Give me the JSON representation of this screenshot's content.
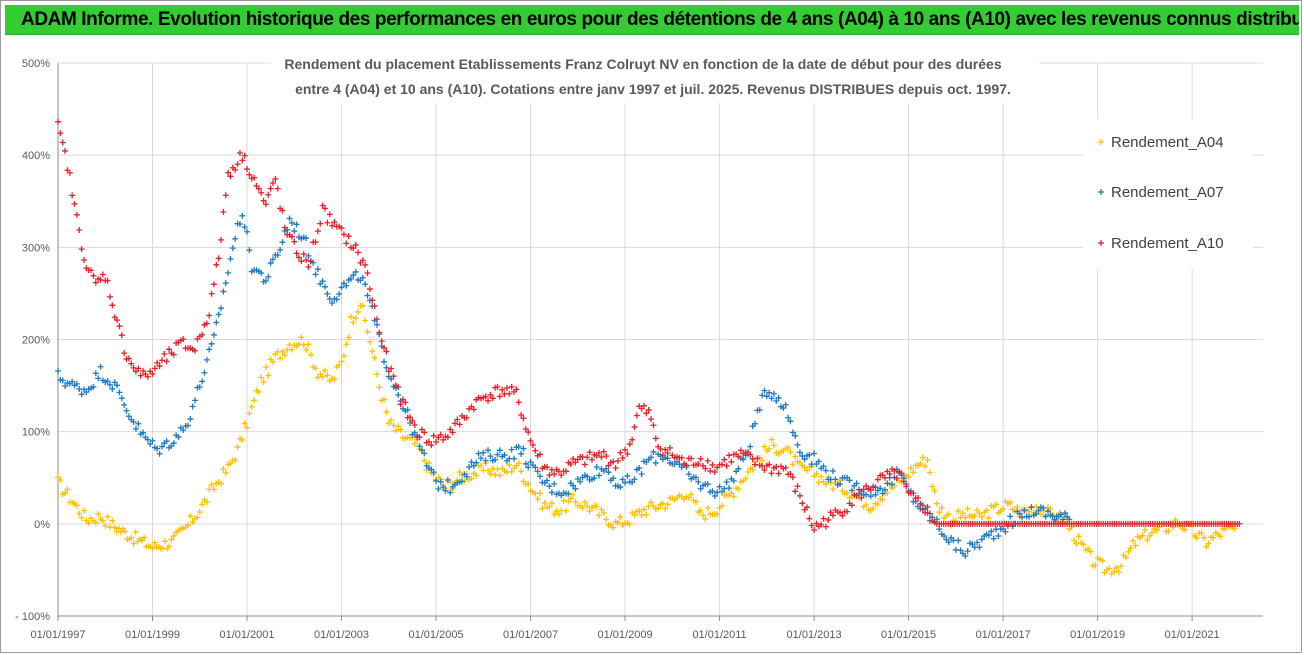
{
  "header": {
    "title": "ADAM Informe. Evolution historique des performances en euros pour des détentions de 4 ans (A04) à 10 ans (A10) avec les revenus connus distribués"
  },
  "chart_data": {
    "type": "scatter",
    "subtitle_lines": [
      "Rendement du placement Etablissements Franz Colruyt NV en fonction de la date de début pour des durées",
      "entre 4 (A04) et 10 ans (A10). Cotations entre janv 1997 et juil. 2025. Revenus DISTRIBUES depuis oct. 1997."
    ],
    "x_tick_labels": [
      "01/01/1997",
      "01/01/1999",
      "01/01/2001",
      "01/01/2003",
      "01/01/2005",
      "01/01/2007",
      "01/01/2009",
      "01/01/2011",
      "01/01/2013",
      "01/01/2015",
      "01/01/2017",
      "01/01/2019",
      "01/01/2021"
    ],
    "x_tick_years": [
      1997,
      1999,
      2001,
      2003,
      2005,
      2007,
      2009,
      2011,
      2013,
      2015,
      2017,
      2019,
      2021
    ],
    "xlim": [
      1997.0,
      2022.5
    ],
    "y_tick_labels": [
      "500%",
      "400%",
      "300%",
      "200%",
      "100%",
      "0%",
      "- 100%"
    ],
    "y_tick_values": [
      500,
      400,
      300,
      200,
      100,
      0,
      -100
    ],
    "ylim": [
      -100,
      500
    ],
    "grid": true,
    "legend_position": "right",
    "series": [
      {
        "name": "Rendement_A04",
        "color": "#ffc000",
        "points": [
          [
            1997.0,
            45
          ],
          [
            1997.3,
            25
          ],
          [
            1997.6,
            5
          ],
          [
            1997.9,
            8
          ],
          [
            1998.2,
            -3
          ],
          [
            1998.6,
            -15
          ],
          [
            1999.0,
            -25
          ],
          [
            1999.4,
            -20
          ],
          [
            1999.7,
            -5
          ],
          [
            2000.0,
            15
          ],
          [
            2000.3,
            40
          ],
          [
            2000.6,
            60
          ],
          [
            2000.8,
            80
          ],
          [
            2001.0,
            110
          ],
          [
            2001.3,
            155
          ],
          [
            2001.6,
            180
          ],
          [
            2001.9,
            195
          ],
          [
            2002.2,
            200
          ],
          [
            2002.5,
            165
          ],
          [
            2002.8,
            155
          ],
          [
            2003.0,
            175
          ],
          [
            2003.2,
            220
          ],
          [
            2003.4,
            240
          ],
          [
            2003.6,
            200
          ],
          [
            2003.8,
            150
          ],
          [
            2004.0,
            110
          ],
          [
            2004.3,
            95
          ],
          [
            2004.6,
            85
          ],
          [
            2004.9,
            55
          ],
          [
            2005.2,
            40
          ],
          [
            2005.5,
            50
          ],
          [
            2005.8,
            55
          ],
          [
            2006.1,
            60
          ],
          [
            2006.4,
            55
          ],
          [
            2006.7,
            65
          ],
          [
            2007.0,
            40
          ],
          [
            2007.3,
            20
          ],
          [
            2007.6,
            15
          ],
          [
            2007.9,
            25
          ],
          [
            2008.2,
            20
          ],
          [
            2008.5,
            10
          ],
          [
            2008.8,
            0
          ],
          [
            2009.1,
            5
          ],
          [
            2009.4,
            15
          ],
          [
            2009.7,
            20
          ],
          [
            2010.0,
            25
          ],
          [
            2010.3,
            35
          ],
          [
            2010.6,
            10
          ],
          [
            2010.9,
            15
          ],
          [
            2011.2,
            30
          ],
          [
            2011.5,
            50
          ],
          [
            2011.8,
            70
          ],
          [
            2012.1,
            85
          ],
          [
            2012.4,
            80
          ],
          [
            2012.7,
            60
          ],
          [
            2013.0,
            55
          ],
          [
            2013.3,
            45
          ],
          [
            2013.6,
            40
          ],
          [
            2013.9,
            30
          ],
          [
            2014.2,
            20
          ],
          [
            2014.5,
            35
          ],
          [
            2014.8,
            45
          ],
          [
            2015.0,
            55
          ],
          [
            2015.2,
            65
          ],
          [
            2015.4,
            70
          ],
          [
            2015.6,
            20
          ],
          [
            2015.9,
            5
          ],
          [
            2016.2,
            10
          ],
          [
            2016.5,
            8
          ],
          [
            2016.8,
            15
          ],
          [
            2017.1,
            20
          ],
          [
            2017.4,
            12
          ],
          [
            2017.7,
            20
          ],
          [
            2018.0,
            10
          ],
          [
            2018.3,
            5
          ],
          [
            2018.6,
            -20
          ],
          [
            2018.9,
            -40
          ],
          [
            2019.2,
            -50
          ],
          [
            2019.5,
            -45
          ],
          [
            2019.8,
            -20
          ],
          [
            2020.1,
            -10
          ],
          [
            2020.4,
            -5
          ],
          [
            2020.7,
            2
          ],
          [
            2021.0,
            -8
          ],
          [
            2021.3,
            -20
          ],
          [
            2021.6,
            -10
          ],
          [
            2021.9,
            -5
          ]
        ]
      },
      {
        "name": "Rendement_A07",
        "color": "#1f7ac5",
        "points": [
          [
            1997.0,
            160
          ],
          [
            1997.3,
            150
          ],
          [
            1997.6,
            145
          ],
          [
            1997.9,
            165
          ],
          [
            1998.2,
            150
          ],
          [
            1998.5,
            120
          ],
          [
            1998.8,
            95
          ],
          [
            1999.1,
            80
          ],
          [
            1999.4,
            90
          ],
          [
            1999.7,
            105
          ],
          [
            2000.0,
            150
          ],
          [
            2000.3,
            200
          ],
          [
            2000.5,
            250
          ],
          [
            2000.7,
            300
          ],
          [
            2000.9,
            340
          ],
          [
            2001.1,
            280
          ],
          [
            2001.4,
            265
          ],
          [
            2001.7,
            300
          ],
          [
            2001.9,
            330
          ],
          [
            2002.2,
            310
          ],
          [
            2002.5,
            270
          ],
          [
            2002.8,
            245
          ],
          [
            2003.1,
            260
          ],
          [
            2003.4,
            270
          ],
          [
            2003.6,
            240
          ],
          [
            2003.8,
            200
          ],
          [
            2004.0,
            165
          ],
          [
            2004.3,
            130
          ],
          [
            2004.6,
            90
          ],
          [
            2004.8,
            65
          ],
          [
            2005.0,
            45
          ],
          [
            2005.3,
            40
          ],
          [
            2005.6,
            55
          ],
          [
            2005.9,
            70
          ],
          [
            2006.2,
            75
          ],
          [
            2006.5,
            75
          ],
          [
            2006.8,
            80
          ],
          [
            2007.1,
            55
          ],
          [
            2007.4,
            40
          ],
          [
            2007.7,
            35
          ],
          [
            2008.0,
            45
          ],
          [
            2008.3,
            55
          ],
          [
            2008.6,
            60
          ],
          [
            2008.9,
            40
          ],
          [
            2009.2,
            50
          ],
          [
            2009.5,
            70
          ],
          [
            2009.8,
            75
          ],
          [
            2010.1,
            65
          ],
          [
            2010.4,
            50
          ],
          [
            2010.7,
            40
          ],
          [
            2011.0,
            35
          ],
          [
            2011.3,
            50
          ],
          [
            2011.6,
            80
          ],
          [
            2011.8,
            120
          ],
          [
            2012.0,
            145
          ],
          [
            2012.2,
            140
          ],
          [
            2012.4,
            125
          ],
          [
            2012.7,
            80
          ],
          [
            2013.0,
            70
          ],
          [
            2013.3,
            55
          ],
          [
            2013.6,
            45
          ],
          [
            2013.9,
            40
          ],
          [
            2014.2,
            35
          ],
          [
            2014.5,
            40
          ],
          [
            2014.8,
            55
          ],
          [
            2015.0,
            35
          ],
          [
            2015.3,
            15
          ],
          [
            2015.6,
            0
          ],
          [
            2015.9,
            -20
          ],
          [
            2016.2,
            -30
          ],
          [
            2016.5,
            -20
          ],
          [
            2016.8,
            -10
          ],
          [
            2017.1,
            0
          ],
          [
            2017.4,
            10
          ],
          [
            2017.7,
            15
          ],
          [
            2018.0,
            10
          ],
          [
            2018.4,
            5
          ]
        ]
      },
      {
        "name": "Rendement_A10",
        "color": "#e8202a",
        "points": [
          [
            1997.0,
            430
          ],
          [
            1997.2,
            390
          ],
          [
            1997.4,
            330
          ],
          [
            1997.6,
            280
          ],
          [
            1997.8,
            260
          ],
          [
            1998.0,
            270
          ],
          [
            1998.2,
            230
          ],
          [
            1998.4,
            190
          ],
          [
            1998.6,
            170
          ],
          [
            1998.8,
            160
          ],
          [
            1999.0,
            165
          ],
          [
            1999.3,
            180
          ],
          [
            1999.6,
            195
          ],
          [
            1999.9,
            190
          ],
          [
            2000.2,
            230
          ],
          [
            2000.4,
            290
          ],
          [
            2000.6,
            380
          ],
          [
            2000.9,
            400
          ],
          [
            2001.1,
            380
          ],
          [
            2001.4,
            345
          ],
          [
            2001.6,
            375
          ],
          [
            2001.8,
            320
          ],
          [
            2002.0,
            300
          ],
          [
            2002.3,
            280
          ],
          [
            2002.6,
            340
          ],
          [
            2002.9,
            320
          ],
          [
            2003.2,
            305
          ],
          [
            2003.5,
            280
          ],
          [
            2003.8,
            210
          ],
          [
            2004.0,
            170
          ],
          [
            2004.3,
            130
          ],
          [
            2004.6,
            100
          ],
          [
            2004.9,
            90
          ],
          [
            2005.2,
            95
          ],
          [
            2005.5,
            110
          ],
          [
            2005.8,
            130
          ],
          [
            2006.1,
            140
          ],
          [
            2006.4,
            145
          ],
          [
            2006.7,
            140
          ],
          [
            2007.0,
            90
          ],
          [
            2007.3,
            60
          ],
          [
            2007.6,
            55
          ],
          [
            2007.9,
            65
          ],
          [
            2008.2,
            70
          ],
          [
            2008.5,
            75
          ],
          [
            2008.8,
            65
          ],
          [
            2009.1,
            85
          ],
          [
            2009.3,
            125
          ],
          [
            2009.5,
            120
          ],
          [
            2009.7,
            85
          ],
          [
            2010.0,
            75
          ],
          [
            2010.3,
            65
          ],
          [
            2010.6,
            70
          ],
          [
            2010.9,
            60
          ],
          [
            2011.2,
            70
          ],
          [
            2011.5,
            75
          ],
          [
            2011.8,
            65
          ],
          [
            2012.1,
            60
          ],
          [
            2012.4,
            60
          ],
          [
            2012.7,
            30
          ],
          [
            2013.0,
            -5
          ],
          [
            2013.3,
            5
          ],
          [
            2013.6,
            15
          ],
          [
            2013.9,
            30
          ],
          [
            2014.2,
            40
          ],
          [
            2014.5,
            50
          ],
          [
            2014.8,
            55
          ],
          [
            2015.0,
            30
          ],
          [
            2015.3,
            20
          ],
          [
            2015.6,
            0
          ],
          [
            2016.5,
            0
          ],
          [
            2017.5,
            0
          ],
          [
            2018.5,
            0
          ],
          [
            2019.5,
            0
          ],
          [
            2020.5,
            0
          ],
          [
            2021.5,
            0
          ],
          [
            2022.0,
            0
          ]
        ]
      }
    ]
  }
}
